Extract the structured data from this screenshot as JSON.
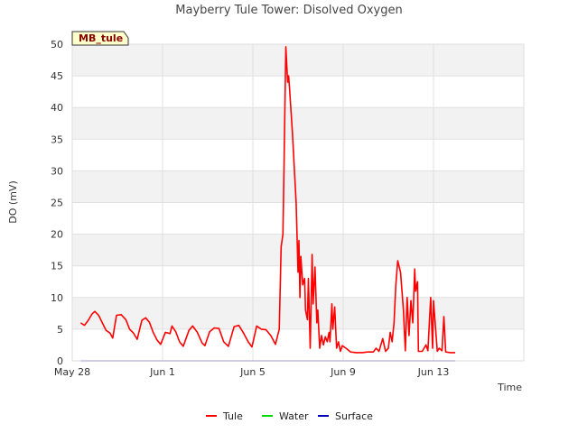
{
  "chart_data": {
    "type": "line",
    "title": "Mayberry Tule Tower: Disolved Oxygen",
    "xlabel": "Time",
    "ylabel": "DO (mV)",
    "badge": "MB_tule",
    "ylim": [
      0,
      50
    ],
    "yticks": [
      0,
      5,
      10,
      15,
      20,
      25,
      30,
      35,
      40,
      45,
      50
    ],
    "xlim": [
      "2021-05-28",
      "2021-06-17"
    ],
    "xticks": [
      {
        "value": "2021-05-28",
        "label": "May 28"
      },
      {
        "value": "2021-06-01",
        "label": "Jun 1"
      },
      {
        "value": "2021-06-05",
        "label": "Jun 5"
      },
      {
        "value": "2021-06-09",
        "label": "Jun 9"
      },
      {
        "value": "2021-06-13",
        "label": "Jun 13"
      }
    ],
    "grid": true,
    "legend_position": "bottom",
    "series": [
      {
        "name": "Tule",
        "color": "#ff0000",
        "points": [
          [
            "2021-05-28T09:00",
            6.0
          ],
          [
            "2021-05-28T13:00",
            5.6
          ],
          [
            "2021-05-28T17:00",
            6.4
          ],
          [
            "2021-05-28T21:00",
            7.4
          ],
          [
            "2021-05-29T00:00",
            7.8
          ],
          [
            "2021-05-29T04:00",
            7.2
          ],
          [
            "2021-05-29T08:00",
            6.0
          ],
          [
            "2021-05-29T12:00",
            4.8
          ],
          [
            "2021-05-29T16:00",
            4.4
          ],
          [
            "2021-05-29T19:00",
            3.6
          ],
          [
            "2021-05-29T23:00",
            7.2
          ],
          [
            "2021-05-30T04:00",
            7.3
          ],
          [
            "2021-05-30T09:00",
            6.5
          ],
          [
            "2021-05-30T13:00",
            5.0
          ],
          [
            "2021-05-30T17:00",
            4.4
          ],
          [
            "2021-05-30T21:00",
            3.4
          ],
          [
            "2021-05-31T02:00",
            6.4
          ],
          [
            "2021-05-31T06:00",
            6.8
          ],
          [
            "2021-05-31T10:00",
            6.1
          ],
          [
            "2021-05-31T14:00",
            4.5
          ],
          [
            "2021-05-31T18:00",
            3.3
          ],
          [
            "2021-05-31T22:00",
            2.6
          ],
          [
            "2021-06-01T03:00",
            4.5
          ],
          [
            "2021-06-01T08:00",
            4.3
          ],
          [
            "2021-06-01T10:00",
            5.5
          ],
          [
            "2021-06-01T14:00",
            4.6
          ],
          [
            "2021-06-01T18:00",
            3.0
          ],
          [
            "2021-06-01T22:00",
            2.3
          ],
          [
            "2021-06-02T04:00",
            4.8
          ],
          [
            "2021-06-02T08:00",
            5.5
          ],
          [
            "2021-06-02T13:00",
            4.5
          ],
          [
            "2021-06-02T18:00",
            2.8
          ],
          [
            "2021-06-02T21:00",
            2.4
          ],
          [
            "2021-06-03T02:00",
            4.6
          ],
          [
            "2021-06-03T07:00",
            5.2
          ],
          [
            "2021-06-03T12:00",
            5.1
          ],
          [
            "2021-06-03T17:00",
            3.0
          ],
          [
            "2021-06-03T22:00",
            2.3
          ],
          [
            "2021-06-04T04:00",
            5.4
          ],
          [
            "2021-06-04T09:00",
            5.6
          ],
          [
            "2021-06-04T14:00",
            4.4
          ],
          [
            "2021-06-04T19:00",
            3.0
          ],
          [
            "2021-06-04T23:00",
            2.2
          ],
          [
            "2021-06-05T04:00",
            5.5
          ],
          [
            "2021-06-05T09:00",
            5.0
          ],
          [
            "2021-06-05T14:00",
            4.9
          ],
          [
            "2021-06-05T19:00",
            4.0
          ],
          [
            "2021-06-06T00:00",
            2.6
          ],
          [
            "2021-06-06T04:00",
            5.0
          ],
          [
            "2021-06-06T06:00",
            18.0
          ],
          [
            "2021-06-06T08:00",
            20.0
          ],
          [
            "2021-06-06T09:00",
            30.0
          ],
          [
            "2021-06-06T11:00",
            49.6
          ],
          [
            "2021-06-06T13:00",
            44.0
          ],
          [
            "2021-06-06T14:00",
            45.0
          ],
          [
            "2021-06-06T15:00",
            43.0
          ],
          [
            "2021-06-06T18:00",
            36.0
          ],
          [
            "2021-06-06T22:00",
            25.0
          ],
          [
            "2021-06-07T00:00",
            14.0
          ],
          [
            "2021-06-07T01:00",
            19.0
          ],
          [
            "2021-06-07T02:00",
            10.0
          ],
          [
            "2021-06-07T03:00",
            16.5
          ],
          [
            "2021-06-07T05:00",
            12.0
          ],
          [
            "2021-06-07T07:00",
            13.0
          ],
          [
            "2021-06-07T08:00",
            8.0
          ],
          [
            "2021-06-07T10:00",
            6.5
          ],
          [
            "2021-06-07T11:00",
            13.0
          ],
          [
            "2021-06-07T13:00",
            2.0
          ],
          [
            "2021-06-07T15:00",
            16.8
          ],
          [
            "2021-06-07T16:00",
            9.0
          ],
          [
            "2021-06-07T18:00",
            14.8
          ],
          [
            "2021-06-07T20:00",
            6.0
          ],
          [
            "2021-06-07T21:00",
            8.0
          ],
          [
            "2021-06-07T23:00",
            2.0
          ],
          [
            "2021-06-08T01:00",
            4.0
          ],
          [
            "2021-06-08T03:00",
            2.5
          ],
          [
            "2021-06-08T05:00",
            3.8
          ],
          [
            "2021-06-08T07:00",
            3.0
          ],
          [
            "2021-06-08T09:00",
            4.5
          ],
          [
            "2021-06-08T10:00",
            3.0
          ],
          [
            "2021-06-08T12:00",
            9.0
          ],
          [
            "2021-06-08T13:00",
            5.0
          ],
          [
            "2021-06-08T15:00",
            8.5
          ],
          [
            "2021-06-08T17:00",
            2.0
          ],
          [
            "2021-06-08T19:00",
            3.0
          ],
          [
            "2021-06-08T21:00",
            1.5
          ],
          [
            "2021-06-08T23:00",
            2.4
          ],
          [
            "2021-06-09T03:00",
            2.0
          ],
          [
            "2021-06-09T08:00",
            1.4
          ],
          [
            "2021-06-09T14:00",
            1.3
          ],
          [
            "2021-06-09T20:00",
            1.3
          ],
          [
            "2021-06-10T02:00",
            1.4
          ],
          [
            "2021-06-10T08:00",
            1.4
          ],
          [
            "2021-06-10T11:00",
            2.0
          ],
          [
            "2021-06-10T14:00",
            1.5
          ],
          [
            "2021-06-10T18:00",
            3.5
          ],
          [
            "2021-06-10T21:00",
            1.5
          ],
          [
            "2021-06-11T00:00",
            2.0
          ],
          [
            "2021-06-11T02:00",
            4.5
          ],
          [
            "2021-06-11T04:00",
            3.0
          ],
          [
            "2021-06-11T06:00",
            6.0
          ],
          [
            "2021-06-11T08:00",
            12.0
          ],
          [
            "2021-06-11T10:00",
            15.8
          ],
          [
            "2021-06-11T13:00",
            14.0
          ],
          [
            "2021-06-11T16:00",
            8.0
          ],
          [
            "2021-06-11T18:00",
            1.6
          ],
          [
            "2021-06-11T20:00",
            10.0
          ],
          [
            "2021-06-11T22:00",
            4.0
          ],
          [
            "2021-06-12T00:00",
            9.5
          ],
          [
            "2021-06-12T02:00",
            6.0
          ],
          [
            "2021-06-12T04:00",
            14.5
          ],
          [
            "2021-06-12T05:00",
            11.0
          ],
          [
            "2021-06-12T07:00",
            12.5
          ],
          [
            "2021-06-12T08:00",
            1.5
          ],
          [
            "2021-06-12T12:00",
            1.5
          ],
          [
            "2021-06-12T16:00",
            2.5
          ],
          [
            "2021-06-12T18:00",
            1.6
          ],
          [
            "2021-06-12T21:00",
            10.0
          ],
          [
            "2021-06-12T23:00",
            2.0
          ],
          [
            "2021-06-13T00:00",
            9.5
          ],
          [
            "2021-06-13T02:00",
            5.5
          ],
          [
            "2021-06-13T04:00",
            1.5
          ],
          [
            "2021-06-13T06:00",
            2.0
          ],
          [
            "2021-06-13T09:00",
            1.6
          ],
          [
            "2021-06-13T11:00",
            7.0
          ],
          [
            "2021-06-13T13:00",
            1.4
          ],
          [
            "2021-06-13T18:00",
            1.3
          ],
          [
            "2021-06-13T23:00",
            1.3
          ]
        ]
      },
      {
        "name": "Water",
        "color": "#00dd00",
        "points": []
      },
      {
        "name": "Surface",
        "color": "#0000bb",
        "points": [
          [
            "2021-05-28T09:00",
            0.0
          ],
          [
            "2021-06-13T23:00",
            0.0
          ]
        ]
      }
    ]
  }
}
